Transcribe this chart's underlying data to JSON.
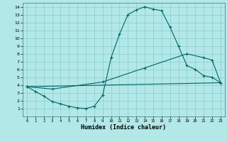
{
  "xlabel": "Humidex (Indice chaleur)",
  "bg_color": "#b3e8e8",
  "line_color": "#006666",
  "grid_color": "#88cccc",
  "xlim": [
    -0.5,
    23.5
  ],
  "ylim": [
    0,
    14.5
  ],
  "xticks": [
    0,
    1,
    2,
    3,
    4,
    5,
    6,
    7,
    8,
    9,
    10,
    11,
    12,
    13,
    14,
    15,
    16,
    17,
    18,
    19,
    20,
    21,
    22,
    23
  ],
  "yticks": [
    1,
    2,
    3,
    4,
    5,
    6,
    7,
    8,
    9,
    10,
    11,
    12,
    13,
    14
  ],
  "line1_x": [
    0,
    1,
    2,
    3,
    4,
    5,
    6,
    7,
    8,
    9,
    10,
    11,
    12,
    13,
    14,
    15,
    16,
    17,
    18,
    19,
    20,
    21,
    22,
    23
  ],
  "line1_y": [
    3.8,
    3.2,
    2.6,
    1.9,
    1.6,
    1.3,
    1.1,
    1.0,
    1.3,
    2.7,
    7.5,
    10.5,
    13.0,
    13.6,
    14.0,
    13.7,
    13.5,
    11.4,
    9.0,
    6.5,
    6.0,
    5.2,
    5.0,
    4.3
  ],
  "line2_x": [
    0,
    3,
    9,
    14,
    19,
    21,
    22,
    23
  ],
  "line2_y": [
    3.8,
    3.5,
    4.4,
    6.2,
    8.0,
    7.5,
    7.2,
    4.3
  ],
  "line3_x": [
    0,
    23
  ],
  "line3_y": [
    3.8,
    4.3
  ]
}
